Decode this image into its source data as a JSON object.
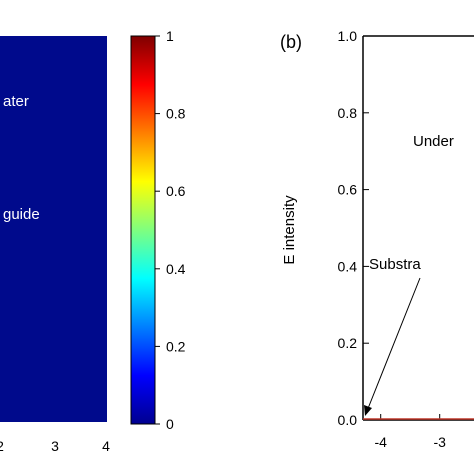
{
  "colors": {
    "map_background": "#000a8c",
    "annotation_on_map": "#ffffff",
    "axis": "#000000",
    "data_line": "#c0392b"
  },
  "left_panel": {
    "annotations": [
      "ater",
      "guide"
    ],
    "x_tick_labels": [
      "2",
      "3",
      "4"
    ]
  },
  "colorbar": {
    "tick_labels": [
      "1",
      "0.8",
      "0.6",
      "0.4",
      "0.2",
      "0"
    ],
    "colormap": [
      "#7f0000",
      "#ff0000",
      "#ff7f00",
      "#ffff00",
      "#7fff7f",
      "#00ffff",
      "#007fff",
      "#0000ff",
      "#00008f"
    ]
  },
  "chart_data": {
    "type": "line",
    "panel_label": "(b)",
    "ylabel": "E intensity",
    "xlabel": "",
    "ylim": [
      0.0,
      1.0
    ],
    "y_ticks": [
      "0.0",
      "0.2",
      "0.4",
      "0.6",
      "0.8",
      "1.0"
    ],
    "x_ticks": [
      "-4",
      "-3"
    ],
    "xlim": [
      -4.3,
      -2.4
    ],
    "annotations": [
      "Under",
      "Substra"
    ],
    "series": [
      {
        "x": [
          -4.3,
          -2.4
        ],
        "y": [
          0.0,
          0.0
        ]
      }
    ]
  }
}
